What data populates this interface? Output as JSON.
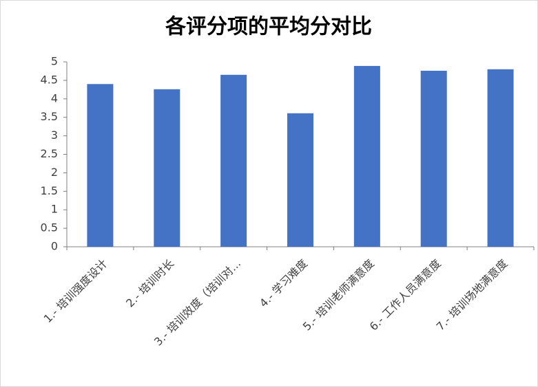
{
  "chart_data": {
    "type": "bar",
    "title": "各评分项的平均分对比",
    "categories": [
      "1.- 培训强度设计",
      "2.- 培训时长",
      "3.- 培训效度（培训对...",
      "4.- 学习难度",
      "5.- 培训老师满意度",
      "6.- 工作人员满意度",
      "7.- 培训场地满意度"
    ],
    "values": [
      4.4,
      4.26,
      4.65,
      3.61,
      4.89,
      4.76,
      4.8
    ],
    "color": "#4472c4",
    "ylim": [
      0,
      5
    ],
    "yticks": [
      0,
      0.5,
      1,
      1.5,
      2,
      2.5,
      3,
      3.5,
      4,
      4.5,
      5
    ],
    "grid": false
  }
}
